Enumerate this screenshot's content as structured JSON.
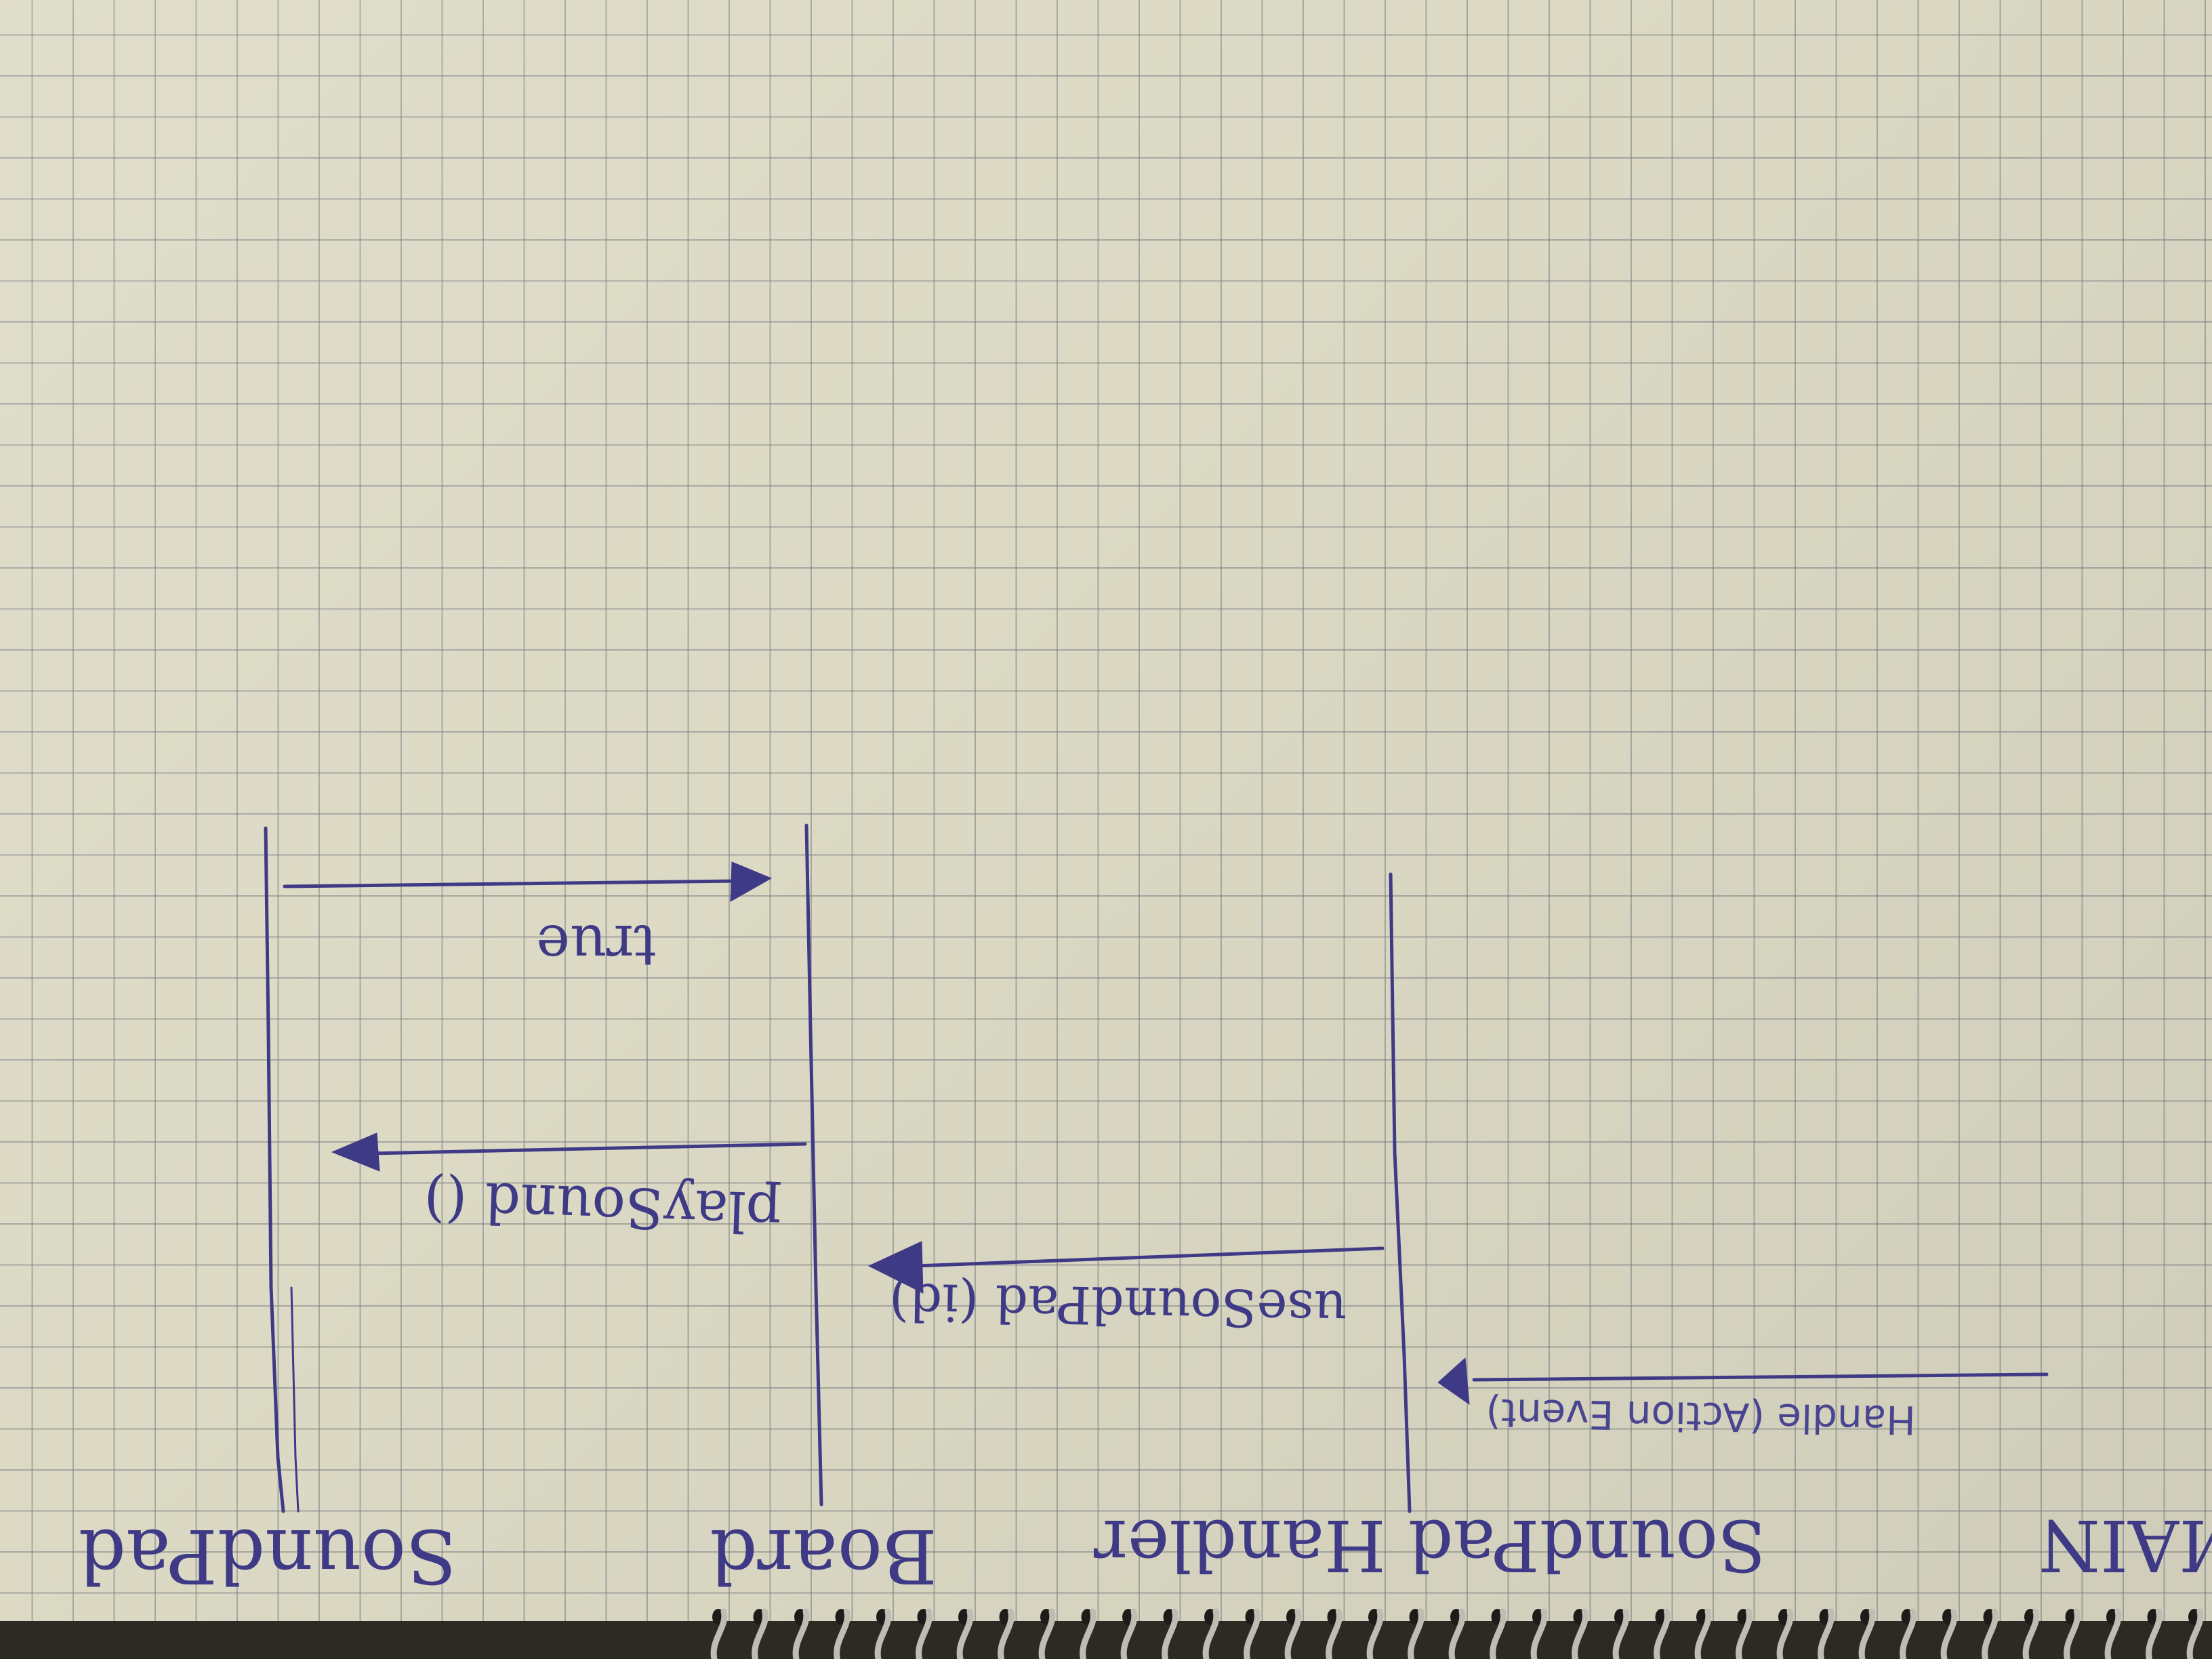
{
  "diagram": {
    "type": "sequence-diagram",
    "orientation": "upside-down",
    "ink_color": "#3f3a86",
    "paper_color": "#dcdac5",
    "lifelines": [
      {
        "id": "main",
        "label": "MAIN"
      },
      {
        "id": "handler",
        "label": "SoundPad Handler"
      },
      {
        "id": "board",
        "label": "Board"
      },
      {
        "id": "soundpad",
        "label": "SoundPad"
      }
    ],
    "messages": [
      {
        "label": "Handle (Action Event)",
        "from": "main",
        "to": "handler"
      },
      {
        "label": "useSoundPad (id)",
        "from": "handler",
        "to": "board"
      },
      {
        "label": "playSound ()",
        "from": "board",
        "to": "soundpad"
      },
      {
        "label": "true",
        "from": "soundpad",
        "to": "board"
      }
    ]
  }
}
